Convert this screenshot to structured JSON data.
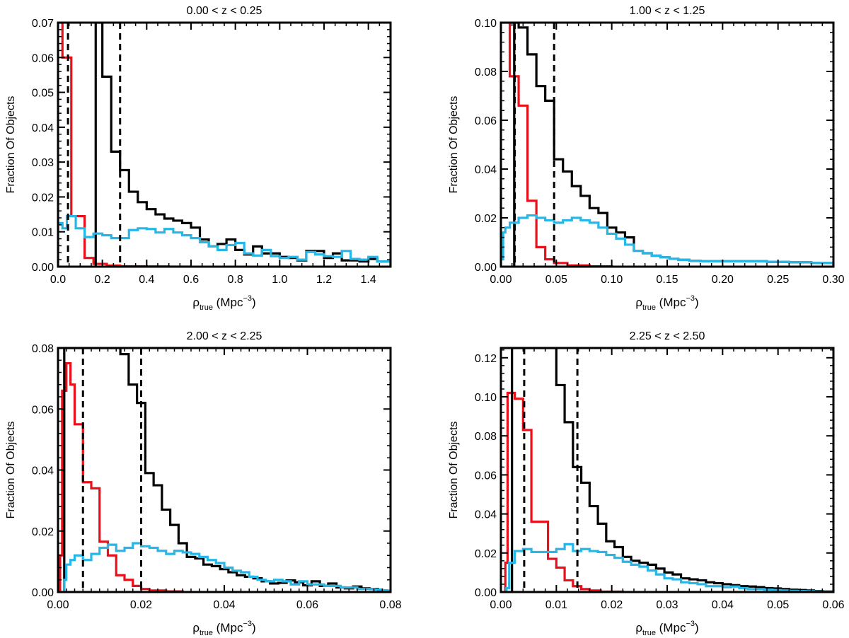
{
  "figure": {
    "style": {
      "all_color": "#e8101a",
      "passive_color": "#000000",
      "star_forming_color": "#27b7e6",
      "threshold_color": "#000000",
      "background": "#ffffff"
    }
  },
  "chart_data": [
    {
      "type": "bar",
      "title": "0.00 < z < 0.25",
      "xlabel_symbol": "ρ",
      "xlabel_subscript": "true",
      "xlabel_unit_pre": " (Mpc",
      "xlabel_unit_exp": "−3",
      "xlabel_unit_post": ")",
      "ylabel": "Fraction Of Objects",
      "xlim": [
        0,
        1.5
      ],
      "ylim": [
        0,
        0.07
      ],
      "xticks": [
        0.0,
        0.2,
        0.4,
        0.6,
        0.8,
        1.0,
        1.2,
        1.4
      ],
      "xtick_labels": [
        "0.0",
        "0.2",
        "0.4",
        "0.6",
        "0.8",
        "1.0",
        "1.2",
        "1.4"
      ],
      "yticks": [
        0,
        0.01,
        0.02,
        0.03,
        0.04,
        0.05,
        0.06,
        0.07
      ],
      "ytick_labels": [
        "0.00",
        "0.01",
        "0.02",
        "0.03",
        "0.04",
        "0.05",
        "0.06",
        "0.07"
      ],
      "xminor": 0.05,
      "yminor": 0.002,
      "thresholds": [
        0.045,
        0.28
      ],
      "series": [
        {
          "name": "red",
          "bin_edges": [
            0,
            0.02,
            0.06,
            0.12,
            0.16,
            0.22,
            0.28,
            0.4,
            0.5,
            0.6
          ],
          "values": [
            0.07,
            0.06,
            0.0145,
            0.0025,
            0.0008,
            0.0003,
            0.0001,
            5e-05,
            0
          ]
        },
        {
          "name": "black",
          "bin_edges": [
            0.17,
            0.2,
            0.24,
            0.28,
            0.32,
            0.36,
            0.4,
            0.44,
            0.48,
            0.52,
            0.56,
            0.6,
            0.64,
            0.68,
            0.72,
            0.76,
            0.8,
            0.84,
            0.88,
            0.92,
            0.96,
            1.0,
            1.04,
            1.08,
            1.12,
            1.16,
            1.2,
            1.24,
            1.28,
            1.32,
            1.36,
            1.4,
            1.44,
            1.5
          ],
          "values": [
            0.07,
            0.0545,
            0.033,
            0.0277,
            0.0215,
            0.0185,
            0.0165,
            0.015,
            0.0138,
            0.0132,
            0.0125,
            0.0112,
            0.0078,
            0.0058,
            0.0065,
            0.0078,
            0.0048,
            0.0035,
            0.0058,
            0.0038,
            0.0038,
            0.0028,
            0.0025,
            0.0018,
            0.0045,
            0.0045,
            0.0025,
            0.0038,
            0.0018,
            0.0018,
            0.0015,
            0.0022,
            0.0015
          ]
        },
        {
          "name": "blue",
          "bin_edges": [
            0,
            0.02,
            0.04,
            0.08,
            0.12,
            0.16,
            0.2,
            0.24,
            0.28,
            0.32,
            0.36,
            0.4,
            0.44,
            0.48,
            0.52,
            0.56,
            0.6,
            0.64,
            0.68,
            0.72,
            0.76,
            0.8,
            0.84,
            0.88,
            0.92,
            0.96,
            1.0,
            1.04,
            1.08,
            1.12,
            1.16,
            1.2,
            1.24,
            1.28,
            1.32,
            1.36,
            1.4,
            1.44,
            1.5
          ],
          "values": [
            0.0125,
            0.011,
            0.0145,
            0.011,
            0.0085,
            0.0095,
            0.009,
            0.0082,
            0.0082,
            0.0105,
            0.011,
            0.0108,
            0.0098,
            0.0108,
            0.0098,
            0.009,
            0.0082,
            0.007,
            0.0058,
            0.0048,
            0.0062,
            0.0068,
            0.0038,
            0.0032,
            0.0048,
            0.003,
            0.0025,
            0.0028,
            0.002,
            0.0042,
            0.0035,
            0.003,
            0.0028,
            0.0045,
            0.0022,
            0.002,
            0.0028,
            0.0015
          ]
        }
      ]
    },
    {
      "type": "bar",
      "title": "1.00 < z < 1.25",
      "xlabel_symbol": "ρ",
      "xlabel_subscript": "true",
      "xlabel_unit_pre": " (Mpc",
      "xlabel_unit_exp": "−3",
      "xlabel_unit_post": ")",
      "ylabel": "Fraction Of Objects",
      "xlim": [
        0,
        0.3
      ],
      "ylim": [
        0,
        0.1
      ],
      "xticks": [
        0.0,
        0.05,
        0.1,
        0.15,
        0.2,
        0.25,
        0.3
      ],
      "xtick_labels": [
        "0.00",
        "0.05",
        "0.10",
        "0.15",
        "0.20",
        "0.25",
        "0.30"
      ],
      "yticks": [
        0,
        0.02,
        0.04,
        0.06,
        0.08,
        0.1
      ],
      "ytick_labels": [
        "0.00",
        "0.02",
        "0.04",
        "0.06",
        "0.08",
        "0.10"
      ],
      "xminor": 0.01,
      "yminor": 0.004,
      "thresholds": [
        0.0125,
        0.048
      ],
      "series": [
        {
          "name": "red",
          "bin_edges": [
            0,
            0.004,
            0.008,
            0.016,
            0.024,
            0.032,
            0.04,
            0.048,
            0.06,
            0.08,
            0.1
          ],
          "values": [
            0.1,
            0.1,
            0.078,
            0.066,
            0.027,
            0.008,
            0.003,
            0.0015,
            0.0005,
            0.0001
          ]
        },
        {
          "name": "black",
          "bin_edges": [
            0.012,
            0.016,
            0.024,
            0.032,
            0.04,
            0.048,
            0.056,
            0.064,
            0.072,
            0.08,
            0.088,
            0.096,
            0.104,
            0.112,
            0.12,
            0.128,
            0.136,
            0.144,
            0.152,
            0.16,
            0.17,
            0.18,
            0.2,
            0.22,
            0.24,
            0.26,
            0.28,
            0.3
          ],
          "values": [
            0.1,
            0.098,
            0.087,
            0.074,
            0.068,
            0.044,
            0.039,
            0.033,
            0.029,
            0.024,
            0.022,
            0.016,
            0.014,
            0.012,
            0.0065,
            0.0055,
            0.0045,
            0.0038,
            0.0032,
            0.0028,
            0.0024,
            0.0022,
            0.0022,
            0.0022,
            0.002,
            0.0018,
            0.0015
          ]
        },
        {
          "name": "blue",
          "bin_edges": [
            0,
            0.002,
            0.004,
            0.008,
            0.016,
            0.024,
            0.032,
            0.04,
            0.048,
            0.056,
            0.064,
            0.072,
            0.08,
            0.088,
            0.096,
            0.104,
            0.112,
            0.12,
            0.128,
            0.136,
            0.144,
            0.152,
            0.16,
            0.17,
            0.18,
            0.2,
            0.22,
            0.24,
            0.26,
            0.28,
            0.3
          ],
          "values": [
            0.003,
            0.014,
            0.016,
            0.018,
            0.02,
            0.021,
            0.02,
            0.019,
            0.018,
            0.019,
            0.02,
            0.019,
            0.018,
            0.016,
            0.0135,
            0.0115,
            0.009,
            0.0065,
            0.0055,
            0.0045,
            0.0038,
            0.0032,
            0.0028,
            0.0024,
            0.0022,
            0.0022,
            0.0022,
            0.002,
            0.0018,
            0.0015
          ]
        }
      ]
    },
    {
      "type": "bar",
      "title": "2.00 < z < 2.25",
      "xlabel_symbol": "ρ",
      "xlabel_subscript": "true",
      "xlabel_unit_pre": " (Mpc",
      "xlabel_unit_exp": "−3",
      "xlabel_unit_post": ")",
      "ylabel": "Fraction Of Objects",
      "xlim": [
        0,
        0.08
      ],
      "ylim": [
        0,
        0.08
      ],
      "xticks": [
        0.0,
        0.02,
        0.04,
        0.06,
        0.08
      ],
      "xtick_labels": [
        "0.00",
        "0.02",
        "0.04",
        "0.06",
        "0.08"
      ],
      "yticks": [
        0,
        0.02,
        0.04,
        0.06,
        0.08
      ],
      "ytick_labels": [
        "0.00",
        "0.02",
        "0.04",
        "0.06",
        "0.08"
      ],
      "xminor": 0.002,
      "yminor": 0.004,
      "thresholds": [
        0.006,
        0.02
      ],
      "series": [
        {
          "name": "red",
          "bin_edges": [
            0.0005,
            0.001,
            0.002,
            0.003,
            0.004,
            0.006,
            0.008,
            0.01,
            0.012,
            0.014,
            0.016,
            0.018,
            0.02,
            0.022,
            0.026,
            0.03
          ],
          "values": [
            0.012,
            0.066,
            0.075,
            0.068,
            0.055,
            0.036,
            0.034,
            0.0165,
            0.012,
            0.0055,
            0.004,
            0.002,
            0.001,
            0.0005,
            0.0002
          ]
        },
        {
          "name": "black",
          "bin_edges": [
            0.0015,
            0.015,
            0.017,
            0.019,
            0.021,
            0.023,
            0.025,
            0.027,
            0.029,
            0.031,
            0.033,
            0.035,
            0.037,
            0.039,
            0.041,
            0.043,
            0.045,
            0.047,
            0.049,
            0.051,
            0.053,
            0.055,
            0.057,
            0.059,
            0.061,
            0.063,
            0.065,
            0.067,
            0.069,
            0.071,
            0.073,
            0.075,
            0.077,
            0.079
          ],
          "values": [
            0.08,
            0.078,
            0.068,
            0.062,
            0.039,
            0.035,
            0.027,
            0.022,
            0.016,
            0.0115,
            0.011,
            0.009,
            0.0085,
            0.0075,
            0.0065,
            0.0055,
            0.005,
            0.0045,
            0.0035,
            0.0028,
            0.003,
            0.0038,
            0.0032,
            0.0022,
            0.0035,
            0.002,
            0.0028,
            0.0015,
            0.0012,
            0.0018,
            0.0012,
            0.001,
            0.0005
          ]
        },
        {
          "name": "blue",
          "bin_edges": [
            0.0015,
            0.002,
            0.003,
            0.004,
            0.006,
            0.008,
            0.01,
            0.012,
            0.014,
            0.016,
            0.018,
            0.02,
            0.022,
            0.024,
            0.026,
            0.028,
            0.03,
            0.032,
            0.034,
            0.036,
            0.038,
            0.04,
            0.042,
            0.044,
            0.046,
            0.048,
            0.05,
            0.052,
            0.054,
            0.056,
            0.058,
            0.06,
            0.062,
            0.064,
            0.066,
            0.068,
            0.07,
            0.072,
            0.074,
            0.076,
            0.078,
            0.08
          ],
          "values": [
            0.004,
            0.009,
            0.0105,
            0.012,
            0.0105,
            0.0125,
            0.0145,
            0.0155,
            0.0135,
            0.0145,
            0.016,
            0.015,
            0.0145,
            0.0135,
            0.0125,
            0.0135,
            0.013,
            0.0125,
            0.0115,
            0.0105,
            0.0095,
            0.008,
            0.007,
            0.0065,
            0.005,
            0.004,
            0.0035,
            0.004,
            0.0035,
            0.0025,
            0.0035,
            0.0025,
            0.0025,
            0.002,
            0.002,
            0.0015,
            0.0015,
            0.001,
            0.001,
            0.0008,
            0.0005
          ]
        }
      ]
    },
    {
      "type": "bar",
      "title": "2.25 < z < 2.50",
      "xlabel_symbol": "ρ",
      "xlabel_subscript": "true",
      "xlabel_unit_pre": " (Mpc",
      "xlabel_unit_exp": "−3",
      "xlabel_unit_post": ")",
      "ylabel": "Fraction Of Objects",
      "xlim": [
        0,
        0.06
      ],
      "ylim": [
        0,
        0.125
      ],
      "xticks": [
        0.0,
        0.01,
        0.02,
        0.03,
        0.04,
        0.05,
        0.06
      ],
      "xtick_labels": [
        "0.00",
        "0.01",
        "0.02",
        "0.03",
        "0.04",
        "0.05",
        "0.06"
      ],
      "yticks": [
        0,
        0.02,
        0.04,
        0.06,
        0.08,
        0.1,
        0.12
      ],
      "ytick_labels": [
        "0.00",
        "0.02",
        "0.04",
        "0.06",
        "0.08",
        "0.10",
        "0.12"
      ],
      "xminor": 0.002,
      "yminor": 0.004,
      "thresholds": [
        0.0042,
        0.0138
      ],
      "series": [
        {
          "name": "red",
          "bin_edges": [
            0.0008,
            0.0012,
            0.0025,
            0.004,
            0.0055,
            0.007,
            0.0085,
            0.01,
            0.0115,
            0.013,
            0.0145,
            0.016,
            0.018,
            0.022
          ],
          "values": [
            0.015,
            0.102,
            0.099,
            0.083,
            0.036,
            0.036,
            0.017,
            0.0125,
            0.006,
            0.003,
            0.0015,
            0.0008,
            0.0002
          ]
        },
        {
          "name": "black",
          "bin_edges": [
            0.002,
            0.01,
            0.0115,
            0.013,
            0.0145,
            0.016,
            0.0175,
            0.019,
            0.0205,
            0.022,
            0.0235,
            0.025,
            0.0265,
            0.028,
            0.0295,
            0.031,
            0.0325,
            0.034,
            0.0355,
            0.037,
            0.0385,
            0.04,
            0.0415,
            0.043,
            0.0445,
            0.046,
            0.0475,
            0.049,
            0.0505,
            0.052,
            0.0535,
            0.055,
            0.0565,
            0.058,
            0.06
          ],
          "values": [
            0.125,
            0.106,
            0.087,
            0.064,
            0.056,
            0.044,
            0.035,
            0.026,
            0.023,
            0.018,
            0.016,
            0.015,
            0.014,
            0.012,
            0.01,
            0.009,
            0.007,
            0.0065,
            0.006,
            0.005,
            0.0045,
            0.004,
            0.0035,
            0.003,
            0.0028,
            0.0025,
            0.002,
            0.0018,
            0.0015,
            0.0012,
            0.001,
            0.0008,
            0.0005,
            0.0003
          ]
        },
        {
          "name": "blue",
          "bin_edges": [
            0.001,
            0.0015,
            0.0025,
            0.004,
            0.0055,
            0.007,
            0.0085,
            0.01,
            0.0115,
            0.013,
            0.0145,
            0.016,
            0.0175,
            0.019,
            0.0205,
            0.022,
            0.0235,
            0.025,
            0.0265,
            0.028,
            0.0295,
            0.031,
            0.0325,
            0.034,
            0.0355,
            0.037,
            0.0385,
            0.04,
            0.0415,
            0.043,
            0.0445,
            0.046,
            0.0475,
            0.049,
            0.0505,
            0.052,
            0.0535,
            0.055,
            0.0565,
            0.058,
            0.06
          ],
          "values": [
            0.002,
            0.015,
            0.021,
            0.022,
            0.0205,
            0.0205,
            0.0205,
            0.022,
            0.0245,
            0.021,
            0.022,
            0.021,
            0.0205,
            0.019,
            0.0175,
            0.0155,
            0.014,
            0.013,
            0.011,
            0.009,
            0.007,
            0.0065,
            0.005,
            0.0045,
            0.004,
            0.003,
            0.003,
            0.0025,
            0.0028,
            0.002,
            0.0015,
            0.0015,
            0.0012,
            0.001,
            0.0008,
            0.0006,
            0.0005,
            0.0004,
            0.0003,
            0.0002
          ]
        }
      ]
    }
  ]
}
